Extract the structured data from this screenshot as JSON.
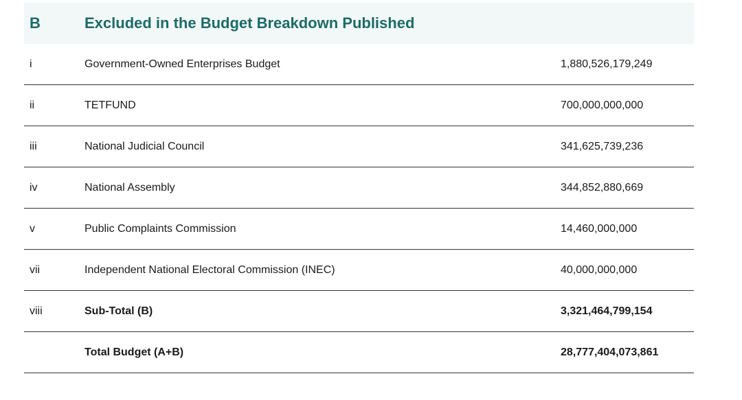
{
  "header": {
    "section": "B",
    "title": "Excluded in the Budget Breakdown Published"
  },
  "rows": [
    {
      "num": "i",
      "desc": "Government-Owned Enterprises Budget",
      "amount": "1,880,526,179,249"
    },
    {
      "num": "ii",
      "desc": "TETFUND",
      "amount": "700,000,000,000"
    },
    {
      "num": "iii",
      "desc": "National Judicial Council",
      "amount": "341,625,739,236"
    },
    {
      "num": "iv",
      "desc": "National Assembly",
      "amount": "344,852,880,669"
    },
    {
      "num": "v",
      "desc": "Public Complaints Commission",
      "amount": "14,460,000,000"
    },
    {
      "num": "vii",
      "desc": "Independent National Electoral Commission (INEC)",
      "amount": "40,000,000,000"
    },
    {
      "num": "viii",
      "desc": "Sub-Total (B)",
      "amount": "3,321,464,799,154"
    },
    {
      "num": "",
      "desc": "Total Budget (A+B)",
      "amount": "28,777,404,073,861"
    }
  ]
}
